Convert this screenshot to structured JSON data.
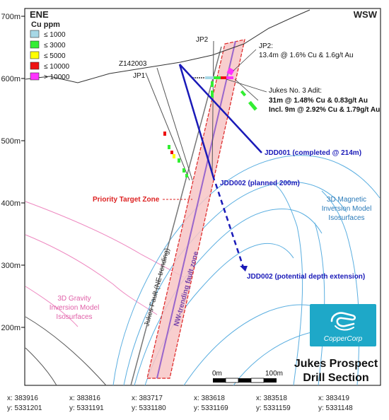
{
  "header": {
    "left_direction": "ENE",
    "right_direction": "WSW"
  },
  "y_axis": {
    "ticks": [
      "700m",
      "600m",
      "500m",
      "400m",
      "300m",
      "200m"
    ]
  },
  "legend": {
    "title": "Cu ppm",
    "items": [
      {
        "label": "≤ 1000",
        "color": "#a7d8e6"
      },
      {
        "label": "≤ 3000",
        "color": "#33ee33"
      },
      {
        "label": "≤ 5000",
        "color": "#ffff00"
      },
      {
        "label": "≤ 10000",
        "color": "#ee1111"
      },
      {
        "label": "> 10000",
        "color": "#ff33ff"
      }
    ]
  },
  "labels": {
    "jp2": "JP2",
    "z142003": "Z142003",
    "jp1": "JP1",
    "jp2_title": "JP2:",
    "jp2_result": "13.4m @ 1.6% Cu & 1.6g/t Au",
    "adit_title": "Jukes No. 3 Adit:",
    "adit_result": "31m @ 1.48% Cu & 0.83g/t Au",
    "adit_incl": "Incl. 9m @ 2.92% Cu & 1.79g/t Au",
    "jdd001": "JDD001 (completed @ 214m)",
    "jdd002": "JDD002 (planned 200m)",
    "jdd002_ext": "JDD002 (potential depth extension)",
    "priority": "Priority Target Zone",
    "magnetic": [
      "3D Magnetic",
      "Inversion Model",
      "Isosurfaces"
    ],
    "gravity": [
      "3D Gravity",
      "Inversion Model",
      "Isosurfaces"
    ],
    "jukes_fault": "Jukes Fault (NE-trending)",
    "nw_fault": "NW-trending fault zone"
  },
  "logo": {
    "name": "CopperCorp"
  },
  "title": {
    "line1": "Jukes Prospect",
    "line2": "Drill Section"
  },
  "scale": {
    "start": "0m",
    "end": "100m"
  },
  "coords": [
    {
      "x": "x: 383916",
      "y": "y: 5331201"
    },
    {
      "x": "x: 383816",
      "y": "y: 5331191"
    },
    {
      "x": "x: 383717",
      "y": "y: 5331180"
    },
    {
      "x": "x: 383618",
      "y": "y: 5331169"
    },
    {
      "x": "x: 383518",
      "y": "y: 5331159"
    },
    {
      "x": "x: 383419",
      "y": "y: 5331148"
    }
  ],
  "colors": {
    "drill_blue": "#1a1ab8",
    "magnetic": "#5aaee0",
    "gravity": "#ee88c0",
    "fault_zone_fill": "#f7c6c6",
    "fault_zone_border": "#dd2222",
    "logo_bg": "#1ea8c8"
  }
}
